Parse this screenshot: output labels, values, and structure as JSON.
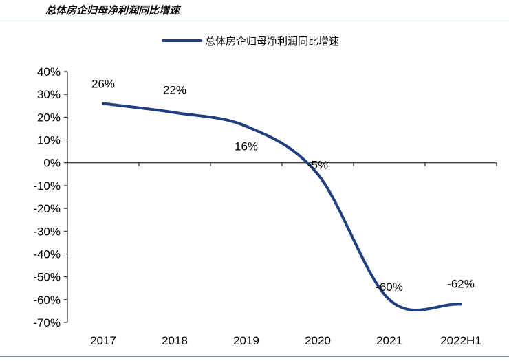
{
  "figure_title": "总体房企归母净利润同比增速",
  "chart_data": {
    "type": "line",
    "categories": [
      "2017",
      "2018",
      "2019",
      "2020",
      "2021",
      "2022H1"
    ],
    "series": [
      {
        "name": "总体房企归母净利润同比增速",
        "values": [
          26,
          22,
          16,
          -5,
          -60,
          -62
        ],
        "labels": [
          "26%",
          "22%",
          "16%",
          "-5%",
          "-60%",
          "-62%"
        ],
        "color": "#1f3f7f",
        "smooth": true
      }
    ],
    "ylim": [
      -70,
      40
    ],
    "yticks": [
      40,
      30,
      20,
      10,
      0,
      -10,
      -20,
      -30,
      -40,
      -50,
      -60,
      -70
    ],
    "ytick_labels": [
      "40%",
      "30%",
      "20%",
      "10%",
      "0%",
      "-10%",
      "-20%",
      "-30%",
      "-40%",
      "-50%",
      "-60%",
      "-70%"
    ],
    "legend_position": "top-center",
    "grid": false,
    "xlabel": "",
    "ylabel": ""
  }
}
